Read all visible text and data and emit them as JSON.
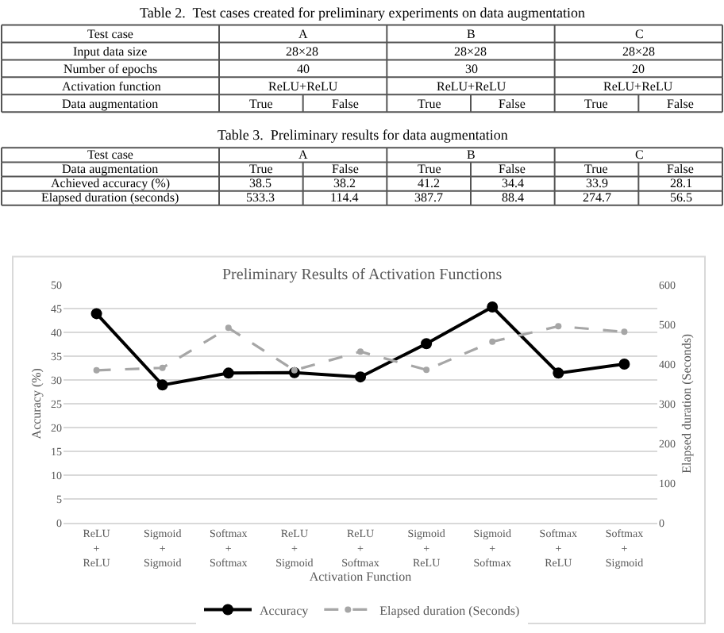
{
  "chart_data": [
    {
      "type": "other",
      "title": "Table 2.  Test cases created for preliminary experiments on data augmentation",
      "cells": [
        [
          "Test case",
          "A",
          null,
          "B",
          null,
          "C",
          null
        ],
        [
          "Input data size",
          "28×28",
          null,
          "28×28",
          null,
          "28×28",
          null
        ],
        [
          "Number of epochs",
          "40",
          null,
          "30",
          null,
          "20",
          null
        ],
        [
          "Activation function",
          "ReLU+ReLU",
          null,
          "ReLU+ReLU",
          null,
          "ReLU+ReLU",
          null
        ],
        [
          "Data augmentation",
          "True",
          "False",
          "True",
          "False",
          "True",
          "False"
        ]
      ]
    },
    {
      "type": "other",
      "title": "Table 3.  Preliminary results for data augmentation",
      "cells": [
        [
          "Test case",
          "A",
          null,
          "B",
          null,
          "C",
          null
        ],
        [
          "Data augmentation",
          "True",
          "False",
          "True",
          "False",
          "True",
          "False"
        ],
        [
          "Achieved accuracy (%)",
          "38.5",
          "38.2",
          "41.2",
          "34.4",
          "33.9",
          "28.1"
        ],
        [
          "Elapsed duration (seconds)",
          "533.3",
          "114.4",
          "387.7",
          "88.4",
          "274.7",
          "56.5"
        ]
      ]
    },
    {
      "type": "line",
      "title": "Preliminary Results of Activation Functions",
      "xlabel": "Activation Function",
      "ylabel": "Accuracy (%)",
      "y2label": "Elapsed duration (Seconds)",
      "categories": [
        "ReLU\n+\nReLU",
        "Sigmoid\n+\nSigmoid",
        "Softmax\n+\nSoftmax",
        "ReLU\n+\nSigmoid",
        "ReLU\n+\nSoftmax",
        "Sigmoid\n+\nReLU",
        "Sigmoid\n+\nSoftmax",
        "Softmax\n+\nReLU",
        "Softmax\n+\nSigmoid"
      ],
      "series": [
        {
          "name": "Accuracy",
          "color": "#000000",
          "line_style": "solid",
          "values": [
            43.9,
            28.9,
            31.4,
            31.5,
            30.6,
            37.6,
            45.3,
            31.4,
            33.3
          ]
        },
        {
          "name": "Elapsed duration (Seconds)",
          "color": "#a6a6a6",
          "line_style": "dashed",
          "axis": "y2",
          "values": [
            384,
            390,
            491,
            384,
            431,
            385,
            456,
            495,
            481
          ]
        }
      ],
      "ylim": [
        0,
        50
      ],
      "yticks": [
        0,
        5,
        10,
        15,
        20,
        25,
        30,
        35,
        40,
        45,
        50
      ],
      "y2lim": [
        0,
        600
      ],
      "y2ticks": [
        0,
        100,
        200,
        300,
        400,
        500,
        600
      ],
      "grid": "y",
      "legend": "bottom",
      "marker": "circle"
    }
  ]
}
